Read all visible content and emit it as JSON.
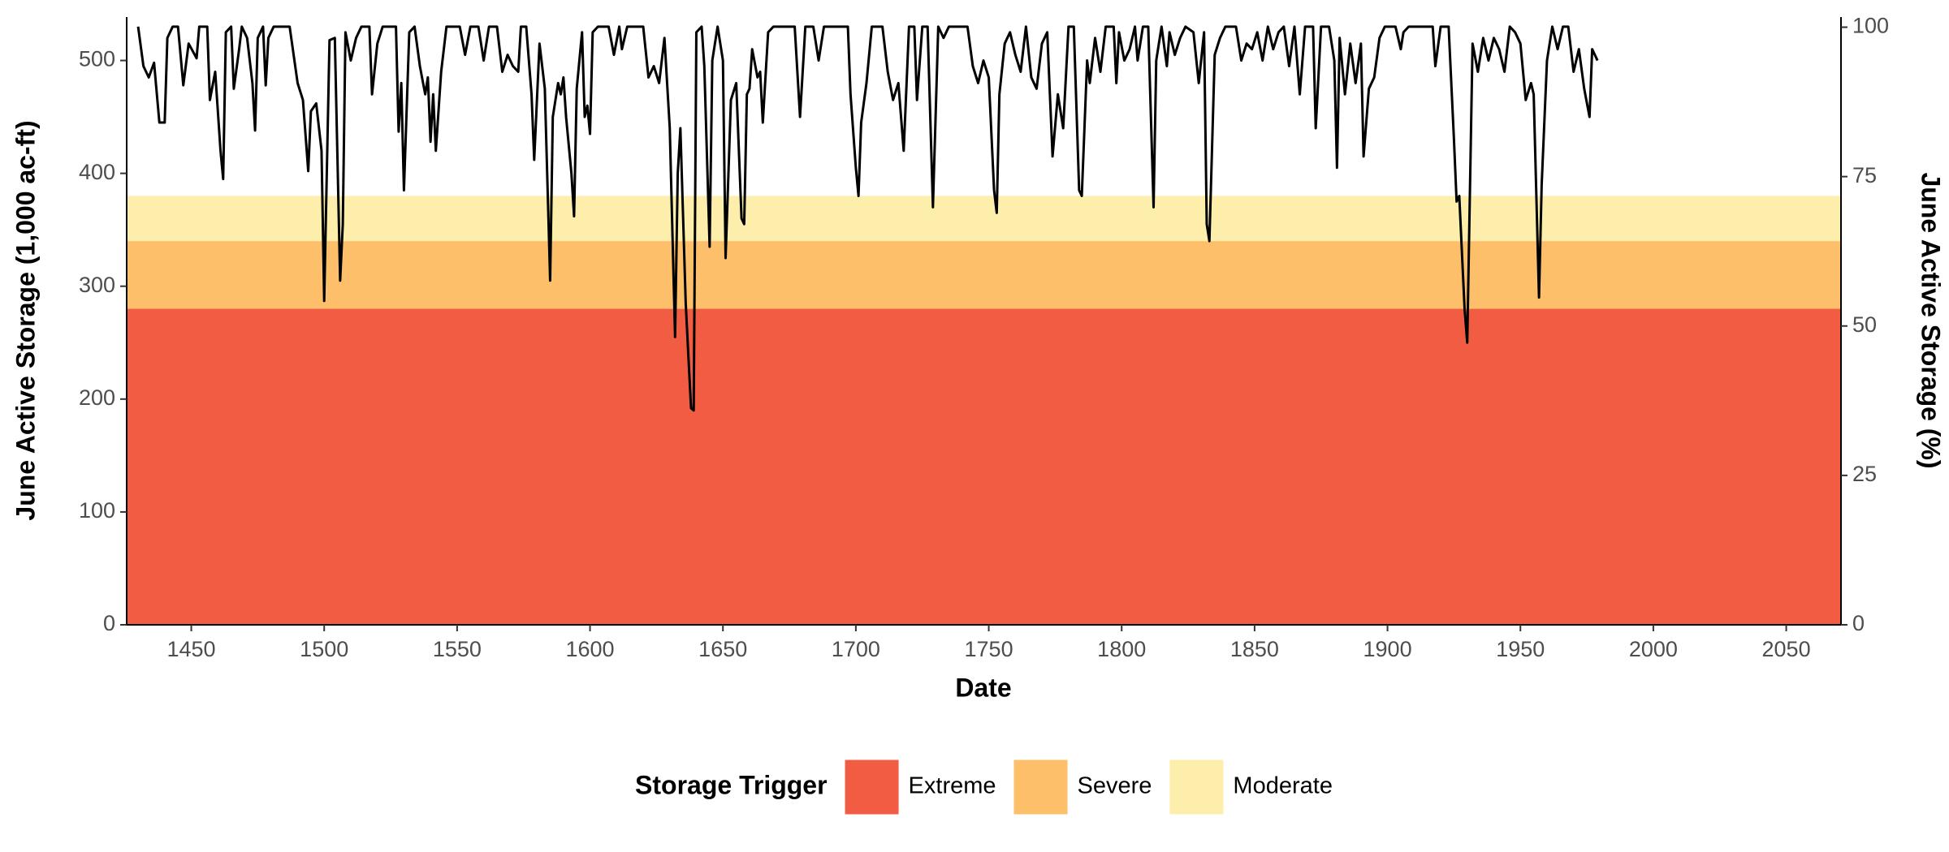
{
  "chart_data": {
    "type": "line",
    "x_label": "Date",
    "y_label": "June Active Storage (1,000 ac-ft)",
    "y2_label": "June Active Storage (%)",
    "legend_title": "Storage Trigger",
    "legend_position": "bottom",
    "xlim": [
      1425.7,
      2070.6
    ],
    "xticks": [
      1450,
      1500,
      1550,
      1600,
      1650,
      1700,
      1750,
      1800,
      1850,
      1900,
      1950,
      2000,
      2050
    ],
    "ylim": [
      0,
      538.5
    ],
    "yticks": [
      0,
      100,
      200,
      300,
      400,
      500
    ],
    "y2lim": [
      0,
      101.7
    ],
    "y2ticks": [
      0,
      25,
      50,
      75,
      100
    ],
    "bands": [
      {
        "name": "Extreme",
        "color": "#f25c43",
        "from": 0,
        "to": 280
      },
      {
        "name": "Severe",
        "color": "#fdbf6a",
        "from": 280,
        "to": 340
      },
      {
        "name": "Moderate",
        "color": "#fdeeab",
        "from": 340,
        "to": 380
      }
    ],
    "x": [
      1430,
      1432,
      1434,
      1436,
      1438,
      1440,
      1441,
      1443,
      1445,
      1447,
      1449,
      1452,
      1453,
      1456,
      1457,
      1459,
      1461,
      1462,
      1463,
      1465,
      1466,
      1468,
      1469,
      1471,
      1473,
      1474,
      1475,
      1477,
      1478,
      1479,
      1481,
      1487,
      1490,
      1492,
      1494,
      1495,
      1497,
      1499,
      1500,
      1502,
      1504,
      1506,
      1507,
      1508,
      1510,
      1512,
      1514,
      1517,
      1518,
      1520,
      1522,
      1527,
      1528,
      1529,
      1530,
      1532,
      1534,
      1536,
      1538,
      1539,
      1540,
      1541,
      1542,
      1544,
      1546,
      1551,
      1553,
      1555,
      1558,
      1560,
      1562,
      1565,
      1567,
      1569,
      1571,
      1573,
      1574,
      1576,
      1578,
      1579,
      1581,
      1583,
      1585,
      1586,
      1588,
      1589,
      1590,
      1591,
      1593,
      1594,
      1595,
      1597,
      1598,
      1599,
      1600,
      1601,
      1603,
      1607,
      1609,
      1611,
      1612,
      1614,
      1616,
      1620,
      1622,
      1624,
      1626,
      1628,
      1630,
      1632,
      1633,
      1634,
      1636,
      1638,
      1639,
      1640,
      1642,
      1643,
      1645,
      1646,
      1648,
      1650,
      1651,
      1653,
      1655,
      1657,
      1658,
      1659,
      1660,
      1661,
      1663,
      1664,
      1665,
      1667,
      1669,
      1677,
      1679,
      1681,
      1684,
      1686,
      1688,
      1692,
      1694,
      1697,
      1698,
      1700,
      1701,
      1702,
      1704,
      1706,
      1710,
      1712,
      1714,
      1716,
      1718,
      1720,
      1722,
      1723,
      1725,
      1727,
      1729,
      1731,
      1733,
      1735,
      1742,
      1744,
      1746,
      1748,
      1750,
      1752,
      1753,
      1754,
      1756,
      1758,
      1760,
      1762,
      1764,
      1766,
      1768,
      1770,
      1772,
      1774,
      1776,
      1778,
      1780,
      1782,
      1784,
      1785,
      1787,
      1788,
      1790,
      1792,
      1794,
      1797,
      1798,
      1799,
      1801,
      1803,
      1805,
      1806,
      1808,
      1810,
      1812,
      1813,
      1815,
      1817,
      1818,
      1820,
      1822,
      1824,
      1827,
      1829,
      1831,
      1832,
      1833,
      1835,
      1837,
      1839,
      1843,
      1845,
      1847,
      1849,
      1851,
      1853,
      1855,
      1857,
      1859,
      1861,
      1863,
      1865,
      1867,
      1869,
      1872,
      1873,
      1875,
      1878,
      1880,
      1881,
      1882,
      1884,
      1886,
      1888,
      1890,
      1891,
      1893,
      1895,
      1897,
      1899,
      1903,
      1905,
      1906,
      1908,
      1917,
      1918,
      1920,
      1923,
      1925,
      1926,
      1927,
      1929,
      1930,
      1932,
      1934,
      1936,
      1938,
      1940,
      1942,
      1944,
      1946,
      1948,
      1950,
      1952,
      1954,
      1955,
      1957,
      1958,
      1960,
      1962,
      1964,
      1966,
      1968,
      1970,
      1972,
      1974,
      1976,
      1977,
      1979
    ],
    "series": [
      {
        "color": "#000000",
        "values": [
          530,
          495,
          485,
          498,
          445,
          445,
          520,
          530,
          530,
          478,
          515,
          502,
          530,
          530,
          465,
          490,
          420,
          395,
          525,
          530,
          475,
          510,
          530,
          520,
          480,
          438,
          520,
          530,
          478,
          520,
          530,
          530,
          480,
          465,
          402,
          455,
          462,
          420,
          287,
          518,
          520,
          305,
          355,
          525,
          500,
          520,
          530,
          530,
          470,
          515,
          530,
          530,
          437,
          480,
          385,
          525,
          530,
          495,
          470,
          485,
          428,
          470,
          420,
          490,
          530,
          530,
          505,
          530,
          530,
          500,
          530,
          530,
          490,
          505,
          495,
          490,
          530,
          530,
          470,
          412,
          515,
          475,
          305,
          450,
          480,
          470,
          485,
          450,
          400,
          362,
          475,
          525,
          450,
          460,
          435,
          525,
          530,
          530,
          505,
          530,
          510,
          530,
          530,
          530,
          485,
          495,
          480,
          520,
          440,
          255,
          400,
          440,
          285,
          192,
          190,
          525,
          530,
          495,
          335,
          500,
          530,
          500,
          325,
          465,
          480,
          360,
          355,
          470,
          475,
          510,
          485,
          490,
          445,
          525,
          530,
          530,
          450,
          530,
          530,
          500,
          530,
          530,
          530,
          530,
          470,
          405,
          380,
          445,
          480,
          530,
          530,
          490,
          465,
          480,
          420,
          530,
          530,
          465,
          530,
          530,
          370,
          530,
          520,
          530,
          530,
          495,
          480,
          500,
          485,
          385,
          365,
          470,
          515,
          525,
          505,
          490,
          530,
          485,
          475,
          515,
          525,
          415,
          470,
          440,
          530,
          530,
          385,
          380,
          500,
          480,
          520,
          490,
          530,
          530,
          480,
          525,
          500,
          510,
          530,
          500,
          530,
          530,
          370,
          500,
          530,
          495,
          525,
          505,
          520,
          530,
          525,
          480,
          525,
          355,
          340,
          505,
          520,
          530,
          530,
          500,
          515,
          510,
          525,
          500,
          530,
          510,
          525,
          530,
          495,
          530,
          470,
          530,
          530,
          440,
          530,
          530,
          500,
          405,
          520,
          470,
          515,
          480,
          515,
          415,
          475,
          485,
          520,
          530,
          530,
          510,
          525,
          530,
          530,
          495,
          530,
          530,
          430,
          375,
          380,
          280,
          250,
          515,
          490,
          520,
          500,
          520,
          510,
          490,
          530,
          525,
          515,
          465,
          480,
          470,
          290,
          390,
          500,
          530,
          510,
          530,
          530,
          490,
          510,
          475,
          450,
          510,
          500
        ]
      }
    ]
  }
}
